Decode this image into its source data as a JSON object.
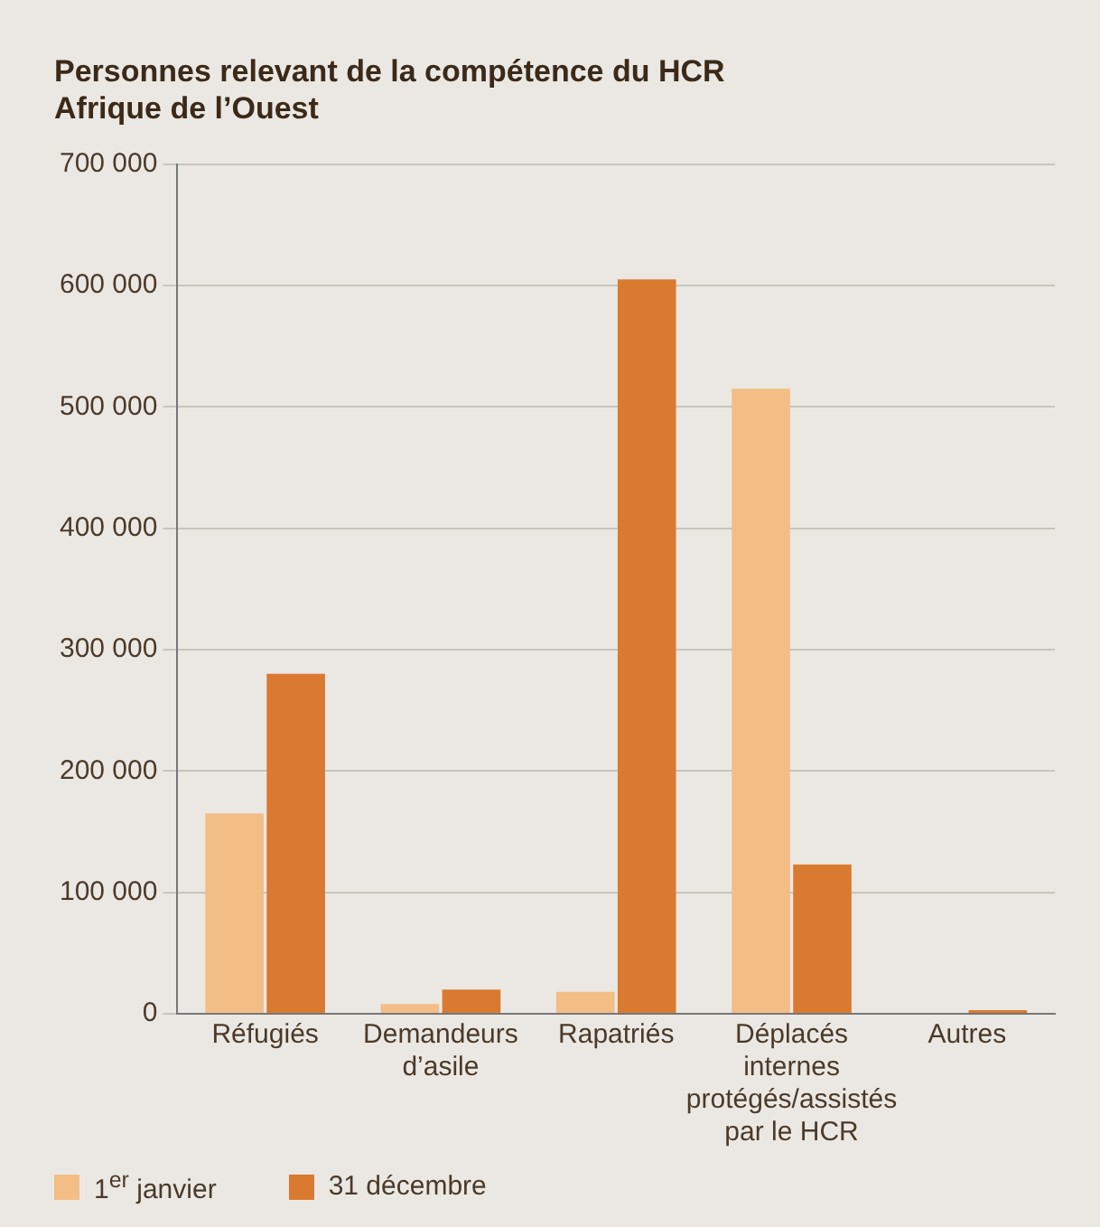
{
  "chart_data": {
    "type": "bar",
    "title": "Personnes relevant de la compétence du HCR",
    "subtitle": "Afrique de l’Ouest",
    "categories": [
      "Réfugiés",
      "Demandeurs d’asile",
      "Rapatriés",
      "Déplacés internes protégés/assistés par le HCR",
      "Autres"
    ],
    "series": [
      {
        "name": "1$^{er}$ janvier",
        "color": "#f3bd86",
        "values": [
          165000,
          8000,
          18000,
          515000,
          0
        ]
      },
      {
        "name": "31 décembre",
        "color": "#d97a30",
        "values": [
          280000,
          20000,
          605000,
          123000,
          3000
        ]
      }
    ],
    "ylim": [
      0,
      700000
    ],
    "yticks": [
      {
        "value": 0,
        "label": "0"
      },
      {
        "value": 100000,
        "label": "100 000"
      },
      {
        "value": 200000,
        "label": "200 000"
      },
      {
        "value": 300000,
        "label": "300 000"
      },
      {
        "value": 400000,
        "label": "400 000"
      },
      {
        "value": 500000,
        "label": "500 000"
      },
      {
        "value": 600000,
        "label": "600 000"
      },
      {
        "value": 700000,
        "label": "700 000"
      }
    ],
    "grid": "y",
    "legend": "bottom left"
  }
}
